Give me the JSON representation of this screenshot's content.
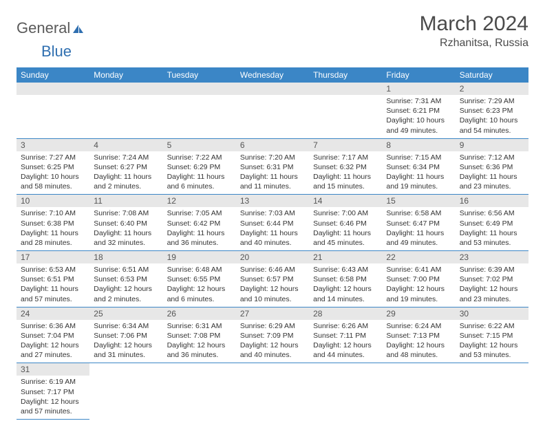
{
  "logo": {
    "text1": "General",
    "text2": "Blue",
    "icon_color": "#2f6fb0"
  },
  "header": {
    "title": "March 2024",
    "location": "Rzhanitsa, Russia"
  },
  "colors": {
    "header_bg": "#3b86c6",
    "daynum_bg": "#e7e7e7",
    "border": "#3b86c6"
  },
  "weekdays": [
    "Sunday",
    "Monday",
    "Tuesday",
    "Wednesday",
    "Thursday",
    "Friday",
    "Saturday"
  ],
  "weeks": [
    [
      null,
      null,
      null,
      null,
      null,
      {
        "n": "1",
        "sr": "Sunrise: 7:31 AM",
        "ss": "Sunset: 6:21 PM",
        "dl": "Daylight: 10 hours and 49 minutes."
      },
      {
        "n": "2",
        "sr": "Sunrise: 7:29 AM",
        "ss": "Sunset: 6:23 PM",
        "dl": "Daylight: 10 hours and 54 minutes."
      }
    ],
    [
      {
        "n": "3",
        "sr": "Sunrise: 7:27 AM",
        "ss": "Sunset: 6:25 PM",
        "dl": "Daylight: 10 hours and 58 minutes."
      },
      {
        "n": "4",
        "sr": "Sunrise: 7:24 AM",
        "ss": "Sunset: 6:27 PM",
        "dl": "Daylight: 11 hours and 2 minutes."
      },
      {
        "n": "5",
        "sr": "Sunrise: 7:22 AM",
        "ss": "Sunset: 6:29 PM",
        "dl": "Daylight: 11 hours and 6 minutes."
      },
      {
        "n": "6",
        "sr": "Sunrise: 7:20 AM",
        "ss": "Sunset: 6:31 PM",
        "dl": "Daylight: 11 hours and 11 minutes."
      },
      {
        "n": "7",
        "sr": "Sunrise: 7:17 AM",
        "ss": "Sunset: 6:32 PM",
        "dl": "Daylight: 11 hours and 15 minutes."
      },
      {
        "n": "8",
        "sr": "Sunrise: 7:15 AM",
        "ss": "Sunset: 6:34 PM",
        "dl": "Daylight: 11 hours and 19 minutes."
      },
      {
        "n": "9",
        "sr": "Sunrise: 7:12 AM",
        "ss": "Sunset: 6:36 PM",
        "dl": "Daylight: 11 hours and 23 minutes."
      }
    ],
    [
      {
        "n": "10",
        "sr": "Sunrise: 7:10 AM",
        "ss": "Sunset: 6:38 PM",
        "dl": "Daylight: 11 hours and 28 minutes."
      },
      {
        "n": "11",
        "sr": "Sunrise: 7:08 AM",
        "ss": "Sunset: 6:40 PM",
        "dl": "Daylight: 11 hours and 32 minutes."
      },
      {
        "n": "12",
        "sr": "Sunrise: 7:05 AM",
        "ss": "Sunset: 6:42 PM",
        "dl": "Daylight: 11 hours and 36 minutes."
      },
      {
        "n": "13",
        "sr": "Sunrise: 7:03 AM",
        "ss": "Sunset: 6:44 PM",
        "dl": "Daylight: 11 hours and 40 minutes."
      },
      {
        "n": "14",
        "sr": "Sunrise: 7:00 AM",
        "ss": "Sunset: 6:46 PM",
        "dl": "Daylight: 11 hours and 45 minutes."
      },
      {
        "n": "15",
        "sr": "Sunrise: 6:58 AM",
        "ss": "Sunset: 6:47 PM",
        "dl": "Daylight: 11 hours and 49 minutes."
      },
      {
        "n": "16",
        "sr": "Sunrise: 6:56 AM",
        "ss": "Sunset: 6:49 PM",
        "dl": "Daylight: 11 hours and 53 minutes."
      }
    ],
    [
      {
        "n": "17",
        "sr": "Sunrise: 6:53 AM",
        "ss": "Sunset: 6:51 PM",
        "dl": "Daylight: 11 hours and 57 minutes."
      },
      {
        "n": "18",
        "sr": "Sunrise: 6:51 AM",
        "ss": "Sunset: 6:53 PM",
        "dl": "Daylight: 12 hours and 2 minutes."
      },
      {
        "n": "19",
        "sr": "Sunrise: 6:48 AM",
        "ss": "Sunset: 6:55 PM",
        "dl": "Daylight: 12 hours and 6 minutes."
      },
      {
        "n": "20",
        "sr": "Sunrise: 6:46 AM",
        "ss": "Sunset: 6:57 PM",
        "dl": "Daylight: 12 hours and 10 minutes."
      },
      {
        "n": "21",
        "sr": "Sunrise: 6:43 AM",
        "ss": "Sunset: 6:58 PM",
        "dl": "Daylight: 12 hours and 14 minutes."
      },
      {
        "n": "22",
        "sr": "Sunrise: 6:41 AM",
        "ss": "Sunset: 7:00 PM",
        "dl": "Daylight: 12 hours and 19 minutes."
      },
      {
        "n": "23",
        "sr": "Sunrise: 6:39 AM",
        "ss": "Sunset: 7:02 PM",
        "dl": "Daylight: 12 hours and 23 minutes."
      }
    ],
    [
      {
        "n": "24",
        "sr": "Sunrise: 6:36 AM",
        "ss": "Sunset: 7:04 PM",
        "dl": "Daylight: 12 hours and 27 minutes."
      },
      {
        "n": "25",
        "sr": "Sunrise: 6:34 AM",
        "ss": "Sunset: 7:06 PM",
        "dl": "Daylight: 12 hours and 31 minutes."
      },
      {
        "n": "26",
        "sr": "Sunrise: 6:31 AM",
        "ss": "Sunset: 7:08 PM",
        "dl": "Daylight: 12 hours and 36 minutes."
      },
      {
        "n": "27",
        "sr": "Sunrise: 6:29 AM",
        "ss": "Sunset: 7:09 PM",
        "dl": "Daylight: 12 hours and 40 minutes."
      },
      {
        "n": "28",
        "sr": "Sunrise: 6:26 AM",
        "ss": "Sunset: 7:11 PM",
        "dl": "Daylight: 12 hours and 44 minutes."
      },
      {
        "n": "29",
        "sr": "Sunrise: 6:24 AM",
        "ss": "Sunset: 7:13 PM",
        "dl": "Daylight: 12 hours and 48 minutes."
      },
      {
        "n": "30",
        "sr": "Sunrise: 6:22 AM",
        "ss": "Sunset: 7:15 PM",
        "dl": "Daylight: 12 hours and 53 minutes."
      }
    ],
    [
      {
        "n": "31",
        "sr": "Sunrise: 6:19 AM",
        "ss": "Sunset: 7:17 PM",
        "dl": "Daylight: 12 hours and 57 minutes."
      },
      null,
      null,
      null,
      null,
      null,
      null
    ]
  ]
}
